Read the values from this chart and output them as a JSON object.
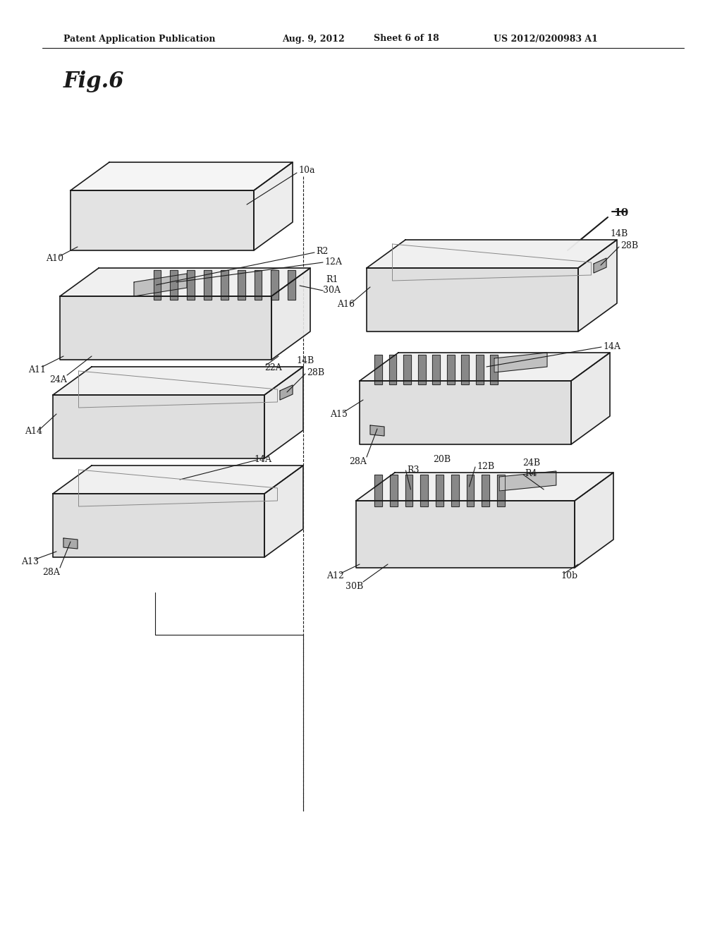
{
  "bg_color": "#ffffff",
  "header_text": "Patent Application Publication",
  "header_date": "Aug. 9, 2012",
  "header_sheet": "Sheet 6 of 18",
  "header_patent": "US 2012/0200983 A1",
  "fig_label": "Fig.6",
  "line_color": "#1a1a1a",
  "line_width": 1.2,
  "thin_line": 0.7
}
